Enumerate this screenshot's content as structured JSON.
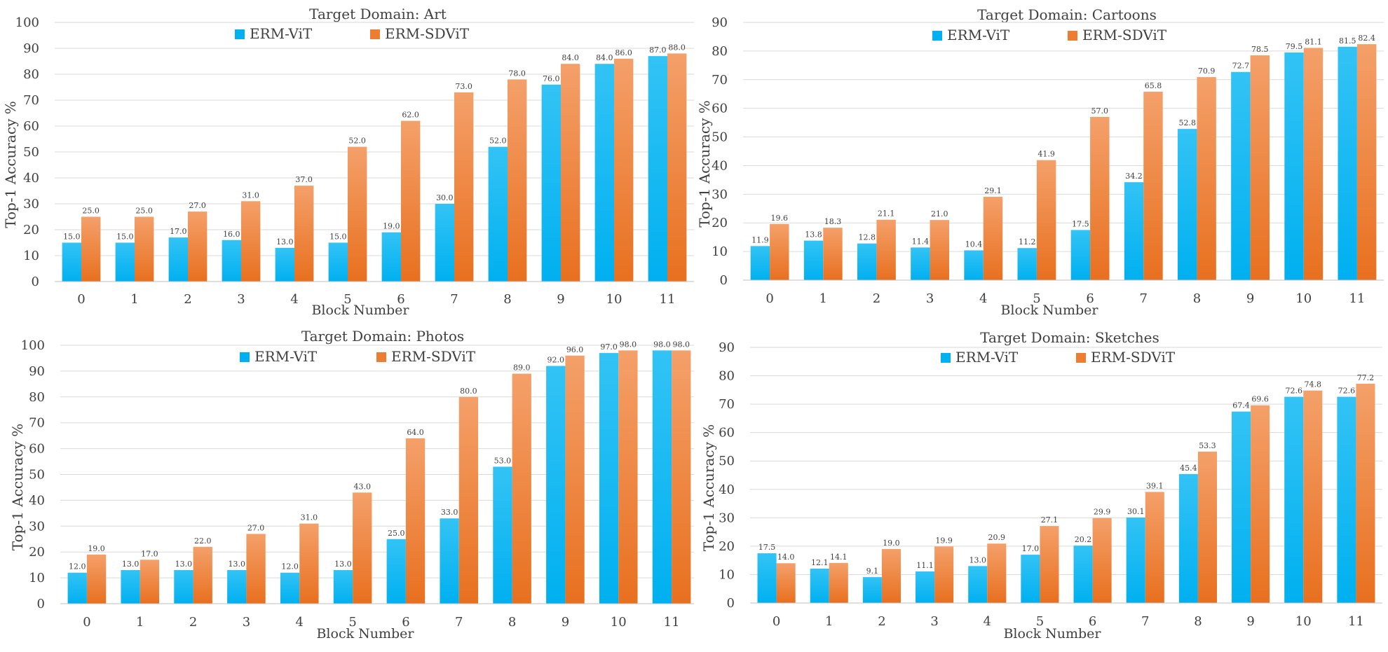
{
  "colors": {
    "vit": "#00B0F0",
    "sdvit": "#ED7D31",
    "sdvit_light": "#F4A06A",
    "grid": "#d9d9d9",
    "axis_text": "#404040",
    "title_text": "#404040",
    "label_text": "#404040"
  },
  "chart_data": [
    {
      "type": "bar",
      "title": "Target Domain: Art",
      "xlabel": "Block Number",
      "ylabel": "Top-1 Accuracy %",
      "ylim": [
        0,
        100
      ],
      "yticks": [
        0,
        10,
        20,
        30,
        40,
        50,
        60,
        70,
        80,
        90,
        100
      ],
      "categories": [
        "0",
        "1",
        "2",
        "3",
        "4",
        "5",
        "6",
        "7",
        "8",
        "9",
        "10",
        "11"
      ],
      "series": [
        {
          "name": "ERM-ViT",
          "values": [
            15.0,
            15.0,
            17.0,
            16.0,
            13.0,
            15.0,
            19.0,
            30.0,
            52.0,
            76.0,
            84.0,
            87.0
          ]
        },
        {
          "name": "ERM-SDViT",
          "values": [
            25.0,
            25.0,
            27.0,
            31.0,
            37.0,
            52.0,
            62.0,
            73.0,
            78.0,
            84.0,
            86.0,
            88.0
          ]
        }
      ],
      "legend": "top-center",
      "grid": true
    },
    {
      "type": "bar",
      "title": "Target Domain: Cartoons",
      "xlabel": "Block Number",
      "ylabel": "Top-1 Accuracy %",
      "ylim": [
        0,
        90
      ],
      "yticks": [
        0,
        10,
        20,
        30,
        40,
        50,
        60,
        70,
        80,
        90
      ],
      "categories": [
        "0",
        "1",
        "2",
        "3",
        "4",
        "5",
        "6",
        "7",
        "8",
        "9",
        "10",
        "11"
      ],
      "series": [
        {
          "name": "ERM-ViT",
          "values": [
            11.9,
            13.8,
            12.8,
            11.4,
            10.4,
            11.2,
            17.5,
            34.2,
            52.8,
            72.7,
            79.5,
            81.5
          ]
        },
        {
          "name": "ERM-SDViT",
          "values": [
            19.6,
            18.3,
            21.1,
            21.0,
            29.1,
            41.9,
            57.0,
            65.8,
            70.9,
            78.5,
            81.1,
            82.4
          ]
        }
      ],
      "legend": "top-center",
      "grid": true
    },
    {
      "type": "bar",
      "title": "Target Domain: Photos",
      "xlabel": "Block Number",
      "ylabel": "Top-1 Accuracy %",
      "ylim": [
        0,
        100
      ],
      "yticks": [
        0,
        10,
        20,
        30,
        40,
        50,
        60,
        70,
        80,
        90,
        100
      ],
      "categories": [
        "0",
        "1",
        "2",
        "3",
        "4",
        "5",
        "6",
        "7",
        "8",
        "9",
        "10",
        "11"
      ],
      "series": [
        {
          "name": "ERM-ViT",
          "values": [
            12.0,
            13.0,
            13.0,
            13.0,
            12.0,
            13.0,
            25.0,
            33.0,
            53.0,
            92.0,
            97.0,
            98.0
          ]
        },
        {
          "name": "ERM-SDViT",
          "values": [
            19.0,
            17.0,
            22.0,
            27.0,
            31.0,
            43.0,
            64.0,
            80.0,
            89.0,
            96.0,
            98.0,
            98.0
          ]
        }
      ],
      "legend": "top-center",
      "grid": true
    },
    {
      "type": "bar",
      "title": "Target Domain: Sketches",
      "xlabel": "Block Number",
      "ylabel": "Top-1 Accuracy %",
      "ylim": [
        0,
        90
      ],
      "yticks": [
        0,
        10,
        20,
        30,
        40,
        50,
        60,
        70,
        80,
        90
      ],
      "categories": [
        "0",
        "1",
        "2",
        "3",
        "4",
        "5",
        "6",
        "7",
        "8",
        "9",
        "10",
        "11"
      ],
      "series": [
        {
          "name": "ERM-ViT",
          "values": [
            17.5,
            12.1,
            9.1,
            11.1,
            13.0,
            17.0,
            20.2,
            30.1,
            45.4,
            67.4,
            72.6,
            72.6
          ]
        },
        {
          "name": "ERM-SDViT",
          "values": [
            14.0,
            14.1,
            19.0,
            19.9,
            20.9,
            27.1,
            29.9,
            39.1,
            53.3,
            69.6,
            74.8,
            77.2
          ]
        }
      ],
      "legend": "top-center",
      "grid": true
    }
  ]
}
